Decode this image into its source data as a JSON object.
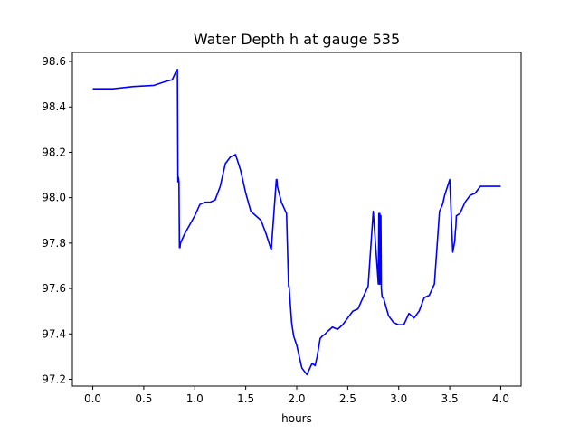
{
  "chart_data": {
    "type": "line",
    "title": "Water Depth h at gauge 535",
    "xlabel": "hours",
    "ylabel": "",
    "xlim": [
      -0.2,
      4.2
    ],
    "ylim": [
      97.17,
      98.64
    ],
    "xticks": [
      0.0,
      0.5,
      1.0,
      1.5,
      2.0,
      2.5,
      3.0,
      3.5,
      4.0
    ],
    "xtick_labels": [
      "0.0",
      "0.5",
      "1.0",
      "1.5",
      "2.0",
      "2.5",
      "3.0",
      "3.5",
      "4.0"
    ],
    "yticks": [
      97.2,
      97.4,
      97.6,
      97.8,
      98.0,
      98.2,
      98.4,
      98.6
    ],
    "ytick_labels": [
      "97.2",
      "97.4",
      "97.6",
      "97.8",
      "98.0",
      "98.2",
      "98.4",
      "98.6"
    ],
    "grid": false,
    "series": [
      {
        "color": "#0000ff",
        "x": [
          0.0,
          0.2,
          0.4,
          0.6,
          0.7,
          0.78,
          0.81,
          0.83,
          0.835,
          0.84,
          0.845,
          0.85,
          0.855,
          0.86,
          0.9,
          0.95,
          1.0,
          1.05,
          1.1,
          1.15,
          1.2,
          1.25,
          1.3,
          1.35,
          1.4,
          1.45,
          1.5,
          1.55,
          1.6,
          1.65,
          1.7,
          1.75,
          1.8,
          1.805,
          1.81,
          1.85,
          1.9,
          1.92,
          1.925,
          1.95,
          1.97,
          2.0,
          2.05,
          2.1,
          2.15,
          2.18,
          2.2,
          2.23,
          2.25,
          2.28,
          2.3,
          2.35,
          2.4,
          2.45,
          2.5,
          2.55,
          2.6,
          2.65,
          2.7,
          2.75,
          2.8,
          2.805,
          2.81,
          2.815,
          2.82,
          2.825,
          2.83,
          2.835,
          2.84,
          2.85,
          2.9,
          2.95,
          3.0,
          3.05,
          3.1,
          3.15,
          3.2,
          3.25,
          3.3,
          3.35,
          3.4,
          3.43,
          3.45,
          3.5,
          3.53,
          3.55,
          3.555,
          3.56,
          3.565,
          3.6,
          3.65,
          3.7,
          3.75,
          3.8,
          3.85,
          3.9,
          3.95,
          4.0
        ],
        "y": [
          98.48,
          98.48,
          98.49,
          98.495,
          98.51,
          98.52,
          98.55,
          98.565,
          98.07,
          98.09,
          98.07,
          97.78,
          97.78,
          97.8,
          97.84,
          97.88,
          97.92,
          97.97,
          97.98,
          97.98,
          97.99,
          98.05,
          98.15,
          98.18,
          98.19,
          98.12,
          98.02,
          97.94,
          97.92,
          97.9,
          97.84,
          97.77,
          98.08,
          98.08,
          98.05,
          97.98,
          97.93,
          97.61,
          97.61,
          97.45,
          97.39,
          97.35,
          97.25,
          97.22,
          97.27,
          97.26,
          97.3,
          97.38,
          97.39,
          97.4,
          97.41,
          97.43,
          97.42,
          97.44,
          97.47,
          97.5,
          97.51,
          97.56,
          97.61,
          97.94,
          97.62,
          97.93,
          97.62,
          97.93,
          97.62,
          97.92,
          97.6,
          97.57,
          97.56,
          97.56,
          97.48,
          97.45,
          97.44,
          97.44,
          97.49,
          97.47,
          97.5,
          97.56,
          97.57,
          97.62,
          97.94,
          97.97,
          98.01,
          98.08,
          97.76,
          97.81,
          97.85,
          97.87,
          97.92,
          97.93,
          97.98,
          98.01,
          98.02,
          98.05,
          98.05,
          98.05,
          98.05,
          98.05
        ]
      }
    ]
  }
}
